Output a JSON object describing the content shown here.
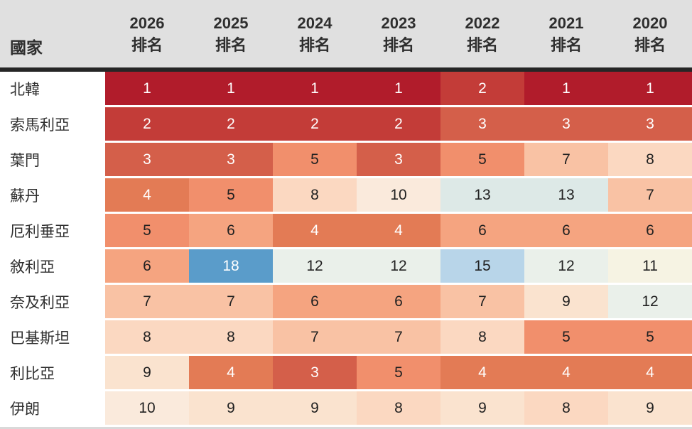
{
  "chart_data": {
    "type": "heatmap",
    "title": "",
    "row_header_label": "國家",
    "rank_sublabel": "排名",
    "columns": [
      "2026",
      "2025",
      "2024",
      "2023",
      "2022",
      "2021",
      "2020"
    ],
    "rows": [
      {
        "country": "北韓",
        "ranks": [
          1,
          1,
          1,
          1,
          2,
          1,
          1
        ]
      },
      {
        "country": "索馬利亞",
        "ranks": [
          2,
          2,
          2,
          2,
          3,
          3,
          3
        ]
      },
      {
        "country": "葉門",
        "ranks": [
          3,
          3,
          5,
          3,
          5,
          7,
          8
        ]
      },
      {
        "country": "蘇丹",
        "ranks": [
          4,
          5,
          8,
          10,
          13,
          13,
          7
        ]
      },
      {
        "country": "厄利垂亞",
        "ranks": [
          5,
          6,
          4,
          4,
          6,
          6,
          6
        ]
      },
      {
        "country": "敘利亞",
        "ranks": [
          6,
          18,
          12,
          12,
          15,
          12,
          11
        ]
      },
      {
        "country": "奈及利亞",
        "ranks": [
          7,
          7,
          6,
          6,
          7,
          9,
          12
        ]
      },
      {
        "country": "巴基斯坦",
        "ranks": [
          8,
          8,
          7,
          7,
          8,
          5,
          5
        ]
      },
      {
        "country": "利比亞",
        "ranks": [
          9,
          4,
          3,
          5,
          4,
          4,
          4
        ]
      },
      {
        "country": "伊朗",
        "ranks": [
          10,
          9,
          9,
          8,
          9,
          8,
          9
        ]
      }
    ],
    "color_scale": {
      "1": {
        "bg": "#B11C2B",
        "fg": "#FFFFFF"
      },
      "2": {
        "bg": "#C33C38",
        "fg": "#FFFFFF"
      },
      "3": {
        "bg": "#D45F4A",
        "fg": "#FFFFFF"
      },
      "4": {
        "bg": "#E37B55",
        "fg": "#FFFFFF"
      },
      "5": {
        "bg": "#F18F6C",
        "fg": "#212121"
      },
      "6": {
        "bg": "#F5A480",
        "fg": "#212121"
      },
      "7": {
        "bg": "#F9C2A4",
        "fg": "#212121"
      },
      "8": {
        "bg": "#FBD8C1",
        "fg": "#212121"
      },
      "9": {
        "bg": "#FAE3CF",
        "fg": "#212121"
      },
      "10": {
        "bg": "#FAEADC",
        "fg": "#212121"
      },
      "11": {
        "bg": "#F6F3E3",
        "fg": "#212121"
      },
      "12": {
        "bg": "#EAF0EA",
        "fg": "#212121"
      },
      "13": {
        "bg": "#DDE9E7",
        "fg": "#212121"
      },
      "15": {
        "bg": "#B8D5E9",
        "fg": "#212121"
      },
      "18": {
        "bg": "#5A9CCA",
        "fg": "#FFFFFF"
      }
    },
    "styles": {
      "header_bg": "#E0E0E0",
      "header_text": "#2E2E2E",
      "header_border": "#262626",
      "country_text": "#303030",
      "cell_text_dark": "#212121",
      "cell_text_light": "#FFFFFF",
      "row_gap": "#FFFFFF",
      "bottom_line": "#D9D9D9"
    }
  }
}
